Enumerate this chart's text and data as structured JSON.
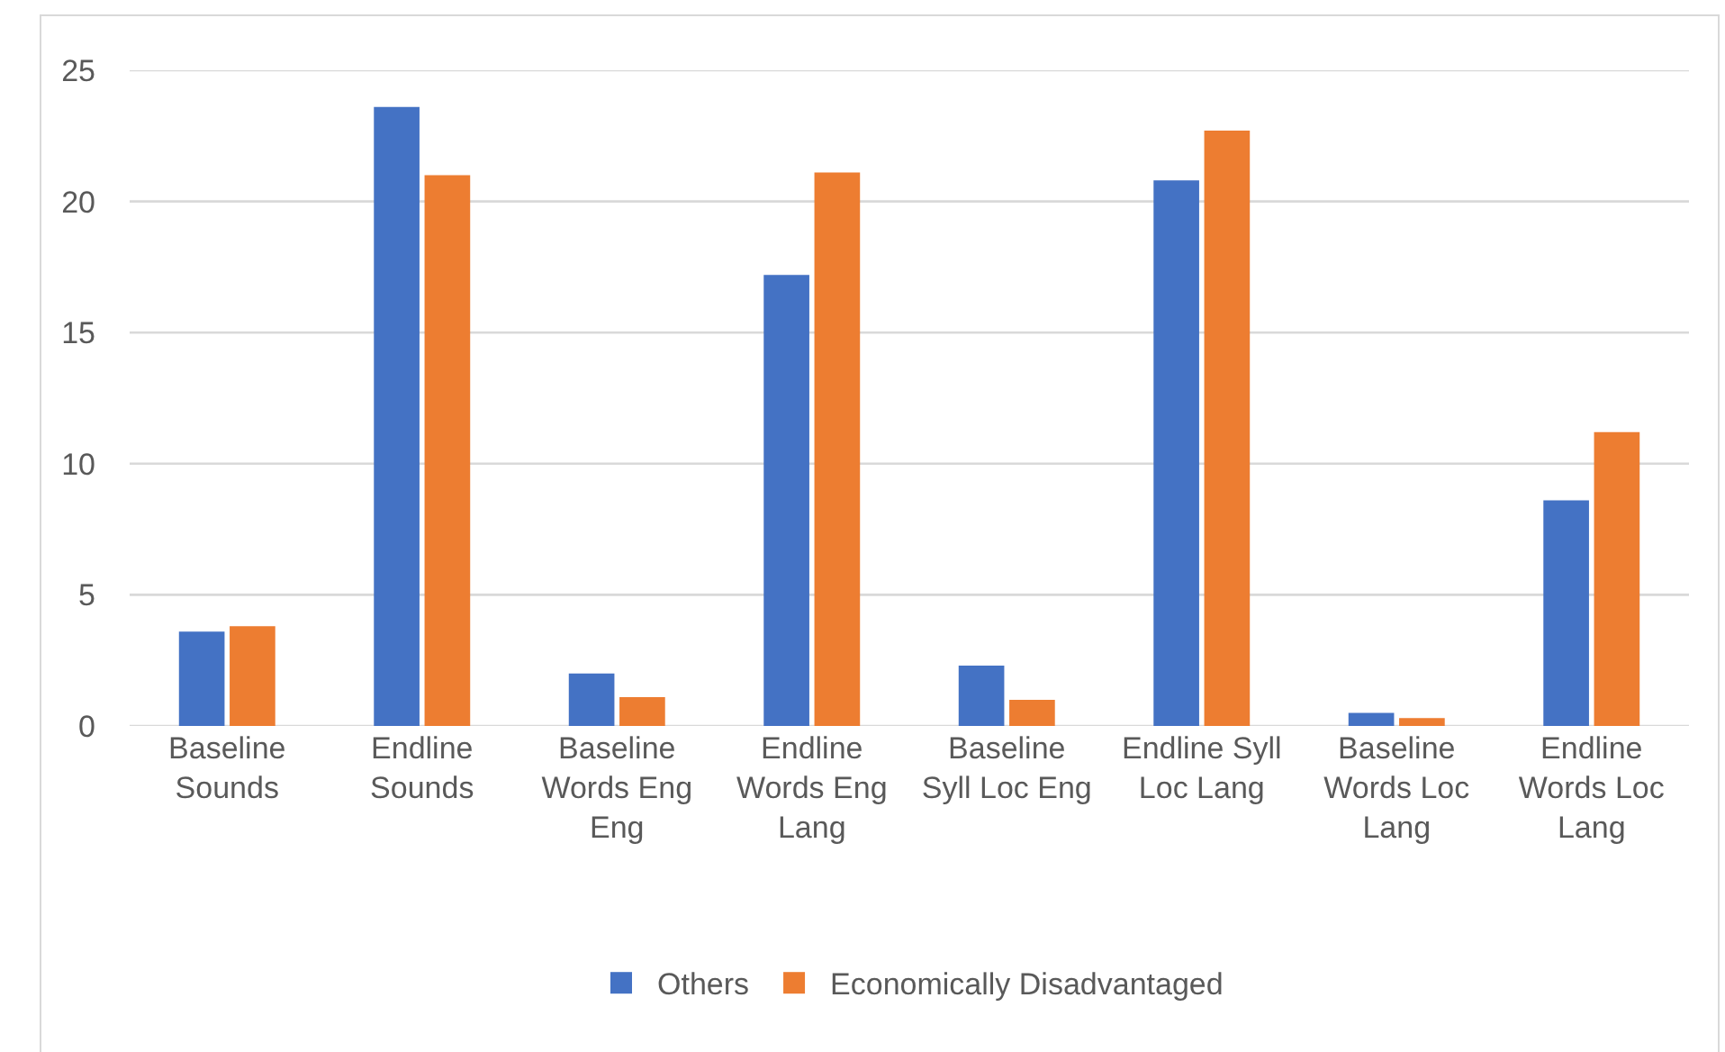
{
  "chart_data": {
    "type": "bar",
    "categories": [
      "Baseline Sounds",
      "Endline Sounds",
      "Baseline Words Eng Eng",
      "Endline Words Eng Lang",
      "Baseline Syll Loc Eng",
      "Endline Syll Loc Lang",
      "Baseline Words Loc Lang",
      "Endline Words Loc Lang"
    ],
    "series": [
      {
        "name": "Others",
        "color": "#4472c4",
        "values": [
          3.6,
          23.6,
          2.0,
          17.2,
          2.3,
          20.8,
          0.5,
          8.6
        ]
      },
      {
        "name": "Economically Disadvantaged",
        "color": "#ed7d31",
        "values": [
          3.8,
          21.0,
          1.1,
          21.1,
          1.0,
          22.7,
          0.3,
          11.2
        ]
      }
    ],
    "ylim": [
      0,
      25
    ],
    "yticks": [
      0,
      5,
      10,
      15,
      20,
      25
    ],
    "grid": "y",
    "legend": "bottom"
  }
}
